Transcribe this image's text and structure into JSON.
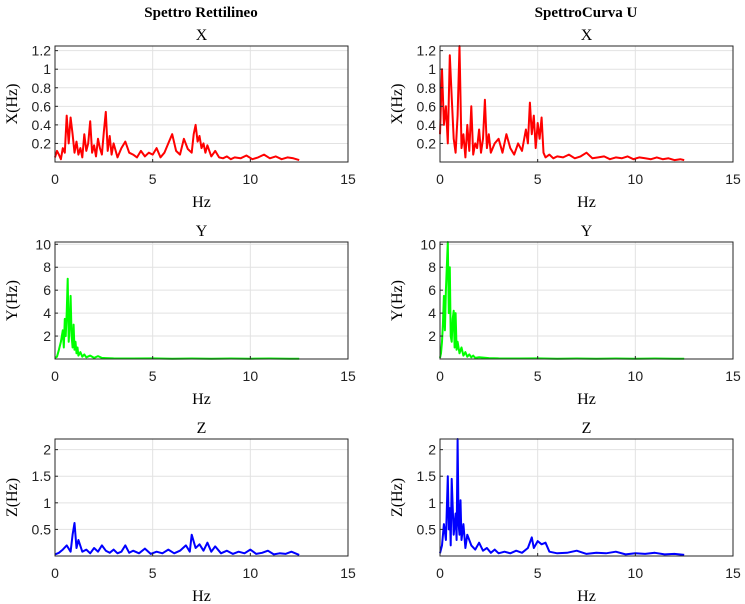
{
  "figure": {
    "column_titles": [
      "Spettro Rettilineo",
      "SpettroCurva U"
    ]
  },
  "chart_data": [
    {
      "type": "line",
      "column": "Spettro Rettilineo",
      "title": "X",
      "xlabel": "Hz",
      "ylabel": "X(Hz)",
      "xlim": [
        0,
        15
      ],
      "ylim": [
        0,
        1.25
      ],
      "xticks": [
        0,
        5,
        10,
        15
      ],
      "xtick_labels": [
        "0",
        "5",
        "10",
        "15"
      ],
      "yticks": [
        0.2,
        0.4,
        0.6,
        0.8,
        1,
        1.2
      ],
      "ytick_labels": [
        "0.2",
        "0.4",
        "0.6",
        "0.8",
        "1",
        "1.2"
      ],
      "grid": true,
      "color": "#ff0000",
      "x": [
        0,
        0.1,
        0.2,
        0.3,
        0.4,
        0.5,
        0.6,
        0.7,
        0.8,
        0.9,
        1.0,
        1.1,
        1.2,
        1.3,
        1.4,
        1.5,
        1.6,
        1.7,
        1.8,
        1.9,
        2.0,
        2.1,
        2.2,
        2.3,
        2.4,
        2.5,
        2.6,
        2.7,
        2.8,
        2.9,
        3.0,
        3.2,
        3.4,
        3.6,
        3.8,
        4.0,
        4.2,
        4.4,
        4.6,
        4.8,
        5.0,
        5.2,
        5.4,
        5.6,
        5.8,
        6.0,
        6.2,
        6.4,
        6.6,
        6.8,
        7.0,
        7.1,
        7.2,
        7.3,
        7.4,
        7.5,
        7.6,
        7.7,
        7.8,
        8.0,
        8.2,
        8.4,
        8.6,
        8.8,
        9.0,
        9.2,
        9.5,
        9.8,
        10.1,
        10.4,
        10.7,
        11.0,
        11.3,
        11.6,
        11.9,
        12.2,
        12.5
      ],
      "y": [
        0.05,
        0.12,
        0.08,
        0.03,
        0.15,
        0.1,
        0.5,
        0.2,
        0.48,
        0.3,
        0.1,
        0.22,
        0.08,
        0.15,
        0.05,
        0.3,
        0.12,
        0.2,
        0.44,
        0.1,
        0.18,
        0.06,
        0.25,
        0.15,
        0.08,
        0.32,
        0.54,
        0.12,
        0.28,
        0.08,
        0.2,
        0.05,
        0.15,
        0.22,
        0.1,
        0.08,
        0.05,
        0.12,
        0.06,
        0.1,
        0.08,
        0.15,
        0.05,
        0.1,
        0.2,
        0.3,
        0.12,
        0.08,
        0.25,
        0.14,
        0.1,
        0.3,
        0.4,
        0.22,
        0.28,
        0.15,
        0.2,
        0.1,
        0.18,
        0.06,
        0.12,
        0.05,
        0.04,
        0.06,
        0.03,
        0.05,
        0.04,
        0.07,
        0.03,
        0.05,
        0.08,
        0.04,
        0.06,
        0.03,
        0.05,
        0.04,
        0.02
      ]
    },
    {
      "type": "line",
      "column": "SpettroCurva U",
      "title": "X",
      "xlabel": "Hz",
      "ylabel": "X(Hz)",
      "xlim": [
        0,
        15
      ],
      "ylim": [
        0,
        1.25
      ],
      "xticks": [
        0,
        5,
        10,
        15
      ],
      "xtick_labels": [
        "0",
        "5",
        "10",
        "15"
      ],
      "yticks": [
        0.2,
        0.4,
        0.6,
        0.8,
        1,
        1.2
      ],
      "ytick_labels": [
        "0.2",
        "0.4",
        "0.6",
        "0.8",
        "1",
        "1.2"
      ],
      "grid": true,
      "color": "#ff0000",
      "x": [
        0,
        0.1,
        0.2,
        0.3,
        0.4,
        0.5,
        0.6,
        0.7,
        0.8,
        0.9,
        1.0,
        1.1,
        1.2,
        1.3,
        1.4,
        1.5,
        1.6,
        1.7,
        1.8,
        1.9,
        2.0,
        2.1,
        2.2,
        2.3,
        2.4,
        2.5,
        2.6,
        2.8,
        3.0,
        3.2,
        3.4,
        3.6,
        3.8,
        4.0,
        4.2,
        4.4,
        4.5,
        4.6,
        4.7,
        4.8,
        4.9,
        5.0,
        5.1,
        5.2,
        5.3,
        5.4,
        5.6,
        5.8,
        6.0,
        6.3,
        6.6,
        6.9,
        7.2,
        7.5,
        7.8,
        8.1,
        8.4,
        8.7,
        9.0,
        9.3,
        9.6,
        9.9,
        10.2,
        10.5,
        10.8,
        11.1,
        11.4,
        11.7,
        12.0,
        12.3,
        12.5
      ],
      "y": [
        0.3,
        1.0,
        0.4,
        0.6,
        0.2,
        1.15,
        0.7,
        0.25,
        0.1,
        0.5,
        1.25,
        0.15,
        0.3,
        0.05,
        0.4,
        0.12,
        0.6,
        0.08,
        0.2,
        0.15,
        0.35,
        0.1,
        0.25,
        0.67,
        0.15,
        0.3,
        0.1,
        0.2,
        0.25,
        0.1,
        0.3,
        0.15,
        0.08,
        0.2,
        0.12,
        0.35,
        0.2,
        0.64,
        0.3,
        0.5,
        0.15,
        0.42,
        0.25,
        0.48,
        0.1,
        0.05,
        0.08,
        0.04,
        0.06,
        0.05,
        0.08,
        0.04,
        0.06,
        0.1,
        0.04,
        0.05,
        0.06,
        0.03,
        0.05,
        0.04,
        0.06,
        0.03,
        0.05,
        0.04,
        0.03,
        0.05,
        0.03,
        0.04,
        0.02,
        0.03,
        0.02
      ]
    },
    {
      "type": "line",
      "column": "Spettro Rettilineo",
      "title": "Y",
      "xlabel": "Hz",
      "ylabel": "Y(Hz)",
      "xlim": [
        0,
        15
      ],
      "ylim": [
        0,
        10.2
      ],
      "xticks": [
        0,
        5,
        10,
        15
      ],
      "xtick_labels": [
        "0",
        "5",
        "10",
        "15"
      ],
      "yticks": [
        2,
        4,
        6,
        8,
        10
      ],
      "ytick_labels": [
        "2",
        "4",
        "6",
        "8",
        "10"
      ],
      "grid": true,
      "color": "#00ff00",
      "x": [
        0,
        0.1,
        0.2,
        0.3,
        0.4,
        0.45,
        0.5,
        0.55,
        0.6,
        0.65,
        0.7,
        0.75,
        0.8,
        0.85,
        0.9,
        0.95,
        1.0,
        1.05,
        1.1,
        1.15,
        1.2,
        1.3,
        1.4,
        1.5,
        1.6,
        1.8,
        2.0,
        2.2,
        2.4,
        2.6,
        3.0,
        4.0,
        5.0,
        6.0,
        7.0,
        8.0,
        9.0,
        10.0,
        11.0,
        12.0,
        12.5
      ],
      "y": [
        0.1,
        0.2,
        0.8,
        1.5,
        2.5,
        1.0,
        3.5,
        2.0,
        4.0,
        7.0,
        1.5,
        3.0,
        5.5,
        2.0,
        1.0,
        3.0,
        0.8,
        1.5,
        0.5,
        1.0,
        0.3,
        0.6,
        0.2,
        0.4,
        0.15,
        0.3,
        0.1,
        0.25,
        0.1,
        0.08,
        0.05,
        0.04,
        0.05,
        0.03,
        0.04,
        0.03,
        0.04,
        0.03,
        0.04,
        0.03,
        0.02
      ]
    },
    {
      "type": "line",
      "column": "SpettroCurva U",
      "title": "Y",
      "xlabel": "Hz",
      "ylabel": "Y(Hz)",
      "xlim": [
        0,
        15
      ],
      "ylim": [
        0,
        10.2
      ],
      "xticks": [
        0,
        5,
        10,
        15
      ],
      "xtick_labels": [
        "0",
        "5",
        "10",
        "15"
      ],
      "yticks": [
        2,
        4,
        6,
        8,
        10
      ],
      "ytick_labels": [
        "2",
        "4",
        "6",
        "8",
        "10"
      ],
      "grid": true,
      "color": "#00ff00",
      "x": [
        0,
        0.05,
        0.1,
        0.15,
        0.2,
        0.25,
        0.3,
        0.35,
        0.4,
        0.45,
        0.5,
        0.55,
        0.6,
        0.65,
        0.7,
        0.75,
        0.8,
        0.85,
        0.9,
        1.0,
        1.1,
        1.2,
        1.3,
        1.4,
        1.5,
        1.6,
        1.7,
        1.8,
        2.0,
        2.5,
        3.0,
        4.0,
        5.0,
        6.0,
        7.0,
        8.0,
        9.0,
        10.0,
        11.0,
        12.0,
        12.5
      ],
      "y": [
        0.1,
        0.5,
        1.5,
        3.0,
        5.5,
        2.5,
        6.0,
        8.0,
        10.2,
        4.0,
        8.0,
        2.0,
        1.5,
        3.5,
        4.2,
        1.0,
        4.0,
        0.8,
        1.5,
        0.5,
        1.0,
        0.3,
        0.6,
        0.2,
        0.4,
        0.15,
        0.3,
        0.1,
        0.15,
        0.08,
        0.05,
        0.04,
        0.05,
        0.03,
        0.04,
        0.03,
        0.04,
        0.03,
        0.04,
        0.03,
        0.02
      ]
    },
    {
      "type": "line",
      "column": "Spettro Rettilineo",
      "title": "Z",
      "xlabel": "Hz",
      "ylabel": "Z(Hz)",
      "xlim": [
        0,
        15
      ],
      "ylim": [
        0,
        2.2
      ],
      "xticks": [
        0,
        5,
        10,
        15
      ],
      "xtick_labels": [
        "0",
        "5",
        "10",
        "15"
      ],
      "yticks": [
        0.5,
        1,
        1.5,
        2
      ],
      "ytick_labels": [
        "0.5",
        "1",
        "1.5",
        "2"
      ],
      "grid": true,
      "color": "#0000ff",
      "x": [
        0,
        0.2,
        0.4,
        0.6,
        0.8,
        0.9,
        1.0,
        1.1,
        1.2,
        1.4,
        1.6,
        1.8,
        2.0,
        2.2,
        2.4,
        2.6,
        2.8,
        3.0,
        3.2,
        3.4,
        3.6,
        3.8,
        4.0,
        4.3,
        4.6,
        4.9,
        5.2,
        5.5,
        5.8,
        6.1,
        6.4,
        6.7,
        6.9,
        7.0,
        7.2,
        7.4,
        7.6,
        7.8,
        8.0,
        8.2,
        8.5,
        8.8,
        9.1,
        9.4,
        9.7,
        10.0,
        10.3,
        10.6,
        10.9,
        11.2,
        11.5,
        11.8,
        12.1,
        12.5
      ],
      "y": [
        0.03,
        0.06,
        0.12,
        0.2,
        0.08,
        0.4,
        0.62,
        0.15,
        0.3,
        0.08,
        0.12,
        0.05,
        0.15,
        0.08,
        0.2,
        0.1,
        0.06,
        0.12,
        0.05,
        0.08,
        0.2,
        0.06,
        0.1,
        0.05,
        0.14,
        0.04,
        0.08,
        0.05,
        0.12,
        0.05,
        0.1,
        0.2,
        0.08,
        0.4,
        0.15,
        0.22,
        0.1,
        0.25,
        0.08,
        0.18,
        0.05,
        0.1,
        0.04,
        0.08,
        0.05,
        0.12,
        0.04,
        0.06,
        0.1,
        0.03,
        0.05,
        0.04,
        0.08,
        0.02
      ]
    },
    {
      "type": "line",
      "column": "SpettroCurva U",
      "title": "Z",
      "xlabel": "Hz",
      "ylabel": "Z(Hz)",
      "xlim": [
        0,
        15
      ],
      "ylim": [
        0,
        2.2
      ],
      "xticks": [
        0,
        5,
        10,
        15
      ],
      "xtick_labels": [
        "0",
        "5",
        "10",
        "15"
      ],
      "yticks": [
        0.5,
        1,
        1.5,
        2
      ],
      "ytick_labels": [
        "0.5",
        "1",
        "1.5",
        "2"
      ],
      "grid": true,
      "color": "#0000ff",
      "x": [
        0,
        0.1,
        0.2,
        0.3,
        0.4,
        0.45,
        0.5,
        0.55,
        0.6,
        0.7,
        0.8,
        0.85,
        0.9,
        0.95,
        1.0,
        1.05,
        1.1,
        1.2,
        1.3,
        1.4,
        1.6,
        1.8,
        2.0,
        2.2,
        2.4,
        2.6,
        2.8,
        3.0,
        3.3,
        3.6,
        3.9,
        4.2,
        4.5,
        4.7,
        4.8,
        5.0,
        5.2,
        5.4,
        5.6,
        6.0,
        6.5,
        7.0,
        7.5,
        8.0,
        8.5,
        9.0,
        9.5,
        10.0,
        10.5,
        11.0,
        11.5,
        12.0,
        12.5
      ],
      "y": [
        0.05,
        0.2,
        0.6,
        0.3,
        1.5,
        0.5,
        0.9,
        0.2,
        1.45,
        0.4,
        0.8,
        0.3,
        2.2,
        0.6,
        0.4,
        1.05,
        0.3,
        0.6,
        0.15,
        0.4,
        0.2,
        0.12,
        0.25,
        0.1,
        0.15,
        0.06,
        0.12,
        0.05,
        0.08,
        0.05,
        0.1,
        0.06,
        0.15,
        0.35,
        0.15,
        0.28,
        0.22,
        0.25,
        0.08,
        0.05,
        0.06,
        0.1,
        0.04,
        0.06,
        0.05,
        0.08,
        0.03,
        0.05,
        0.04,
        0.06,
        0.03,
        0.04,
        0.02
      ]
    }
  ]
}
